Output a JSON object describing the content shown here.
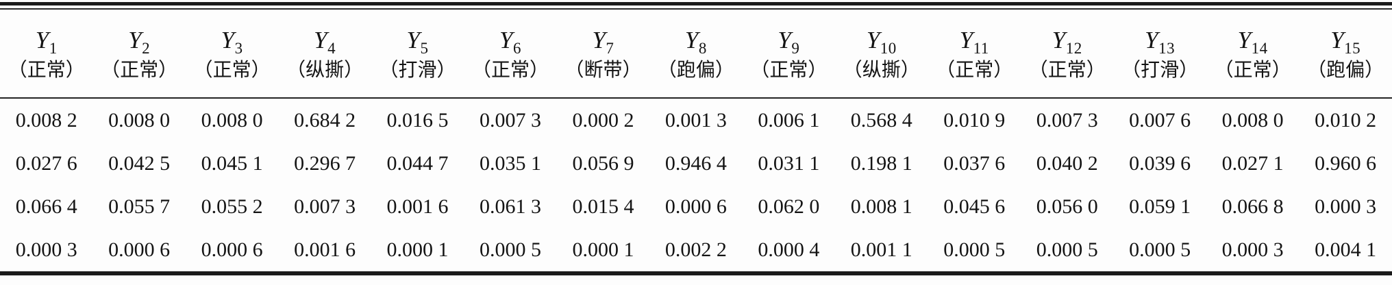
{
  "table": {
    "columns": [
      {
        "sym": "Y",
        "sub": "1",
        "label": "（正常）"
      },
      {
        "sym": "Y",
        "sub": "2",
        "label": "（正常）"
      },
      {
        "sym": "Y",
        "sub": "3",
        "label": "（正常）"
      },
      {
        "sym": "Y",
        "sub": "4",
        "label": "（纵撕）"
      },
      {
        "sym": "Y",
        "sub": "5",
        "label": "（打滑）"
      },
      {
        "sym": "Y",
        "sub": "6",
        "label": "（正常）"
      },
      {
        "sym": "Y",
        "sub": "7",
        "label": "（断带）"
      },
      {
        "sym": "Y",
        "sub": "8",
        "label": "（跑偏）"
      },
      {
        "sym": "Y",
        "sub": "9",
        "label": "（正常）"
      },
      {
        "sym": "Y",
        "sub": "10",
        "label": "（纵撕）"
      },
      {
        "sym": "Y",
        "sub": "11",
        "label": "（正常）"
      },
      {
        "sym": "Y",
        "sub": "12",
        "label": "（正常）"
      },
      {
        "sym": "Y",
        "sub": "13",
        "label": "（打滑）"
      },
      {
        "sym": "Y",
        "sub": "14",
        "label": "（正常）"
      },
      {
        "sym": "Y",
        "sub": "15",
        "label": "（跑偏）"
      }
    ],
    "rows": [
      [
        "0.008 2",
        "0.008 0",
        "0.008 0",
        "0.684 2",
        "0.016 5",
        "0.007 3",
        "0.000 2",
        "0.001 3",
        "0.006 1",
        "0.568 4",
        "0.010 9",
        "0.007 3",
        "0.007 6",
        "0.008 0",
        "0.010 2"
      ],
      [
        "0.027 6",
        "0.042 5",
        "0.045 1",
        "0.296 7",
        "0.044 7",
        "0.035 1",
        "0.056 9",
        "0.946 4",
        "0.031 1",
        "0.198 1",
        "0.037 6",
        "0.040 2",
        "0.039 6",
        "0.027 1",
        "0.960 6"
      ],
      [
        "0.066 4",
        "0.055 7",
        "0.055 2",
        "0.007 3",
        "0.001 6",
        "0.061 3",
        "0.015 4",
        "0.000 6",
        "0.062 0",
        "0.008 1",
        "0.045 6",
        "0.056 0",
        "0.059 1",
        "0.066 8",
        "0.000 3"
      ],
      [
        "0.000 3",
        "0.000 6",
        "0.000 6",
        "0.001 6",
        "0.000 1",
        "0.000 5",
        "0.000 1",
        "0.002 2",
        "0.000 4",
        "0.001 1",
        "0.000 5",
        "0.000 5",
        "0.000 5",
        "0.000 3",
        "0.004 1"
      ]
    ]
  },
  "colors": {
    "text": "#141414",
    "background": "#fdfdfd",
    "rule": "#1b1b1b"
  }
}
